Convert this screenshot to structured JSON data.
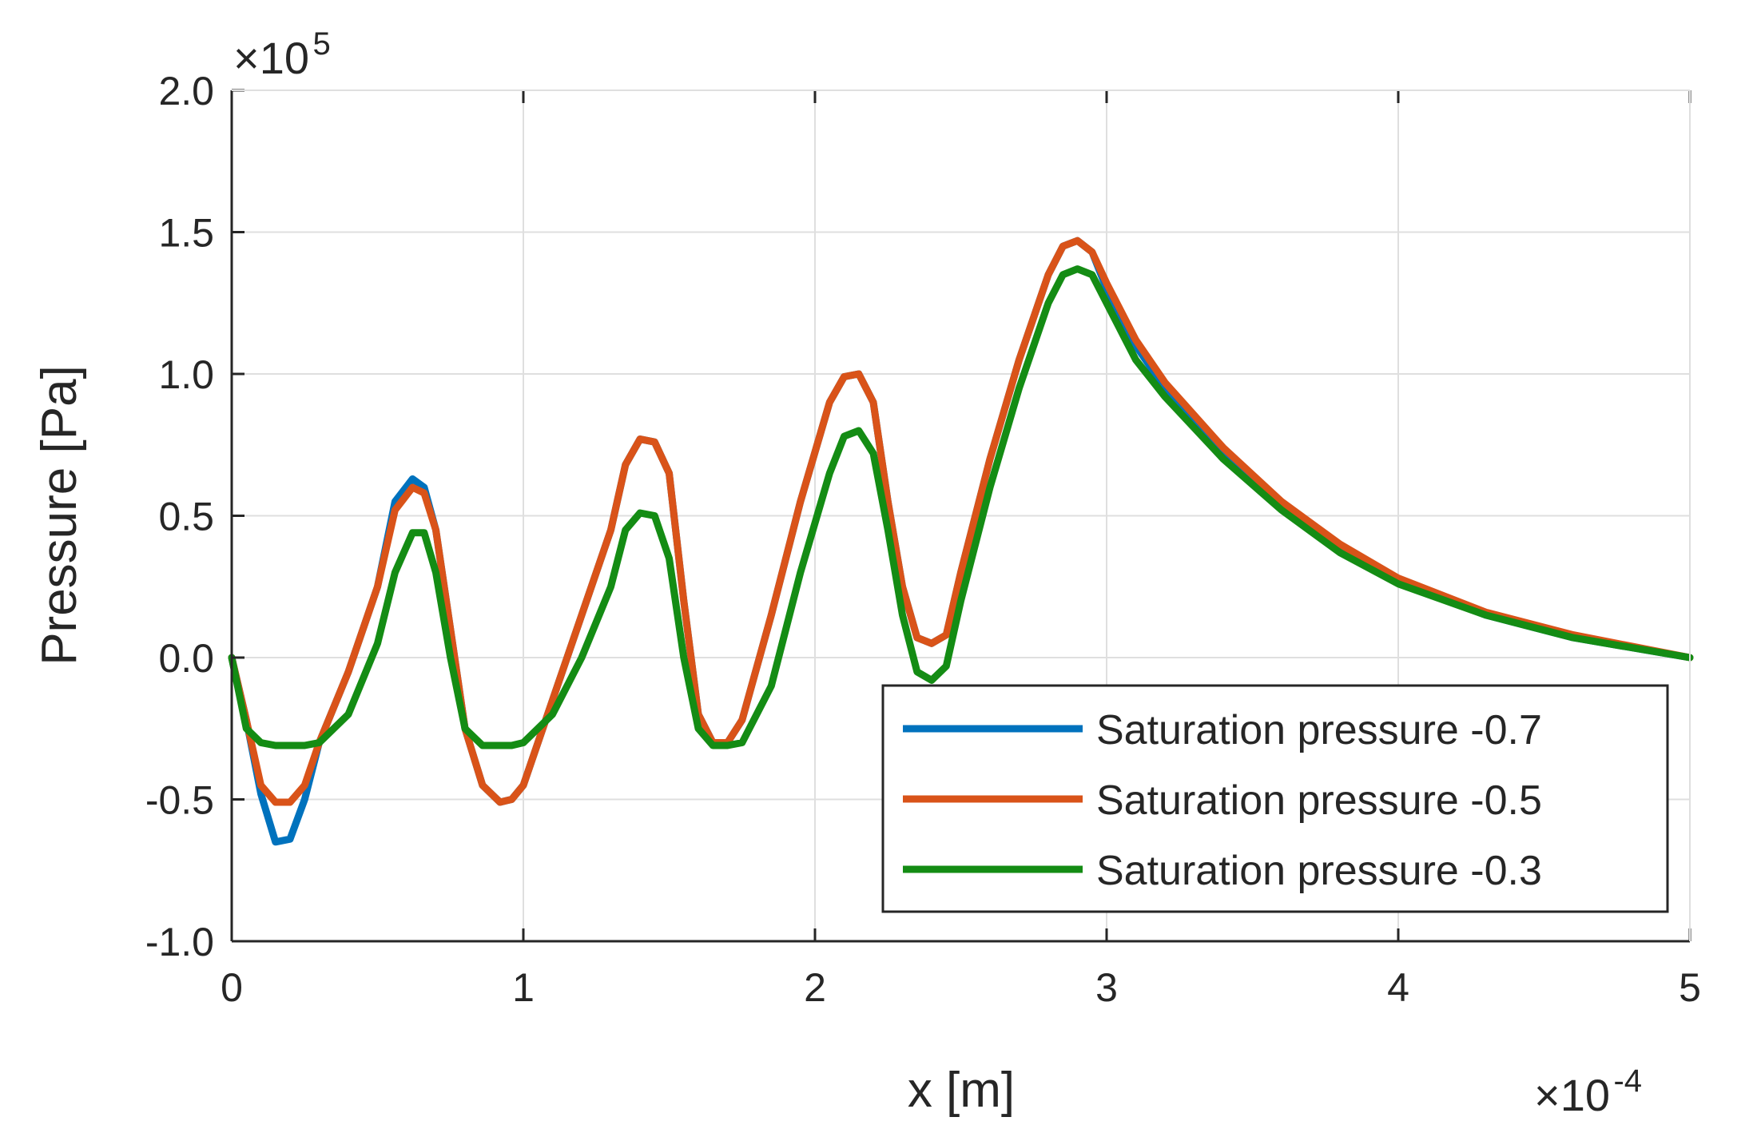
{
  "chart_data": {
    "type": "line",
    "title": "",
    "xlabel": "x [m]",
    "ylabel": "Pressure [Pa]",
    "x_multiplier": {
      "base": "×10",
      "exponent": "-4"
    },
    "y_multiplier": {
      "base": "×10",
      "exponent": "5"
    },
    "xlim": [
      0,
      5
    ],
    "ylim": [
      -1.0,
      2.0
    ],
    "x_ticks": [
      "0",
      "1",
      "2",
      "3",
      "4",
      "5"
    ],
    "y_ticks": [
      "-1.0",
      "-0.5",
      "0.0",
      "0.5",
      "1.0",
      "1.5",
      "2.0"
    ],
    "grid": true,
    "legend_position": "bottom-right",
    "series": [
      {
        "name": "Saturation pressure -0.7",
        "color": "#0072BD",
        "x": [
          0,
          0.05,
          0.1,
          0.15,
          0.2,
          0.25,
          0.3,
          0.4,
          0.5,
          0.56,
          0.62,
          0.66,
          0.7,
          0.75,
          0.8,
          0.86,
          0.92,
          0.96,
          1.0,
          1.1,
          1.2,
          1.3,
          1.35,
          1.4,
          1.45,
          1.5,
          1.55,
          1.6,
          1.65,
          1.7,
          1.75,
          1.85,
          1.95,
          2.05,
          2.1,
          2.15,
          2.2,
          2.25,
          2.3,
          2.35,
          2.4,
          2.45,
          2.5,
          2.6,
          2.7,
          2.8,
          2.85,
          2.9,
          2.95,
          3.0,
          3.1,
          3.2,
          3.4,
          3.6,
          3.8,
          4.0,
          4.3,
          4.6,
          5.0
        ],
        "values": [
          0.0,
          -0.22,
          -0.48,
          -0.65,
          -0.64,
          -0.5,
          -0.3,
          -0.05,
          0.25,
          0.55,
          0.63,
          0.6,
          0.45,
          0.1,
          -0.25,
          -0.45,
          -0.51,
          -0.5,
          -0.45,
          -0.15,
          0.15,
          0.45,
          0.68,
          0.77,
          0.76,
          0.65,
          0.2,
          -0.2,
          -0.3,
          -0.3,
          -0.22,
          0.15,
          0.55,
          0.9,
          0.99,
          1.0,
          0.9,
          0.55,
          0.25,
          0.07,
          0.05,
          0.08,
          0.3,
          0.7,
          1.05,
          1.35,
          1.45,
          1.47,
          1.43,
          1.3,
          1.1,
          0.95,
          0.72,
          0.53,
          0.38,
          0.27,
          0.15,
          0.07,
          0.0
        ]
      },
      {
        "name": "Saturation pressure -0.5",
        "color": "#D95319",
        "x": [
          0,
          0.05,
          0.1,
          0.15,
          0.2,
          0.25,
          0.3,
          0.4,
          0.5,
          0.56,
          0.62,
          0.66,
          0.7,
          0.75,
          0.8,
          0.86,
          0.92,
          0.96,
          1.0,
          1.1,
          1.2,
          1.3,
          1.35,
          1.4,
          1.45,
          1.5,
          1.55,
          1.6,
          1.65,
          1.7,
          1.75,
          1.85,
          1.95,
          2.05,
          2.1,
          2.15,
          2.2,
          2.25,
          2.3,
          2.35,
          2.4,
          2.45,
          2.5,
          2.6,
          2.7,
          2.8,
          2.85,
          2.9,
          2.95,
          3.0,
          3.1,
          3.2,
          3.4,
          3.6,
          3.8,
          4.0,
          4.3,
          4.6,
          5.0
        ],
        "values": [
          0.0,
          -0.22,
          -0.45,
          -0.51,
          -0.51,
          -0.45,
          -0.3,
          -0.05,
          0.25,
          0.52,
          0.6,
          0.58,
          0.45,
          0.1,
          -0.25,
          -0.45,
          -0.51,
          -0.5,
          -0.45,
          -0.15,
          0.15,
          0.45,
          0.68,
          0.77,
          0.76,
          0.65,
          0.2,
          -0.2,
          -0.3,
          -0.3,
          -0.22,
          0.15,
          0.55,
          0.9,
          0.99,
          1.0,
          0.9,
          0.55,
          0.25,
          0.07,
          0.05,
          0.08,
          0.3,
          0.7,
          1.05,
          1.35,
          1.45,
          1.47,
          1.43,
          1.32,
          1.12,
          0.97,
          0.74,
          0.55,
          0.4,
          0.28,
          0.16,
          0.08,
          0.0
        ]
      },
      {
        "name": "Saturation pressure -0.3",
        "color": "#148C14",
        "x": [
          0,
          0.05,
          0.1,
          0.15,
          0.2,
          0.25,
          0.3,
          0.4,
          0.5,
          0.56,
          0.62,
          0.66,
          0.7,
          0.75,
          0.8,
          0.86,
          0.92,
          0.96,
          1.0,
          1.1,
          1.2,
          1.3,
          1.35,
          1.4,
          1.45,
          1.5,
          1.55,
          1.6,
          1.65,
          1.7,
          1.75,
          1.85,
          1.95,
          2.05,
          2.1,
          2.15,
          2.2,
          2.25,
          2.3,
          2.35,
          2.4,
          2.45,
          2.5,
          2.6,
          2.7,
          2.8,
          2.85,
          2.9,
          2.95,
          3.0,
          3.1,
          3.2,
          3.4,
          3.6,
          3.8,
          4.0,
          4.3,
          4.6,
          5.0
        ],
        "values": [
          0.0,
          -0.25,
          -0.3,
          -0.31,
          -0.31,
          -0.31,
          -0.3,
          -0.2,
          0.05,
          0.3,
          0.44,
          0.44,
          0.3,
          0.0,
          -0.25,
          -0.31,
          -0.31,
          -0.31,
          -0.3,
          -0.2,
          0.0,
          0.25,
          0.45,
          0.51,
          0.5,
          0.35,
          0.0,
          -0.25,
          -0.31,
          -0.31,
          -0.3,
          -0.1,
          0.3,
          0.65,
          0.78,
          0.8,
          0.72,
          0.45,
          0.15,
          -0.05,
          -0.08,
          -0.03,
          0.2,
          0.6,
          0.95,
          1.25,
          1.35,
          1.37,
          1.35,
          1.25,
          1.05,
          0.92,
          0.7,
          0.52,
          0.37,
          0.26,
          0.15,
          0.07,
          0.0
        ]
      }
    ]
  }
}
